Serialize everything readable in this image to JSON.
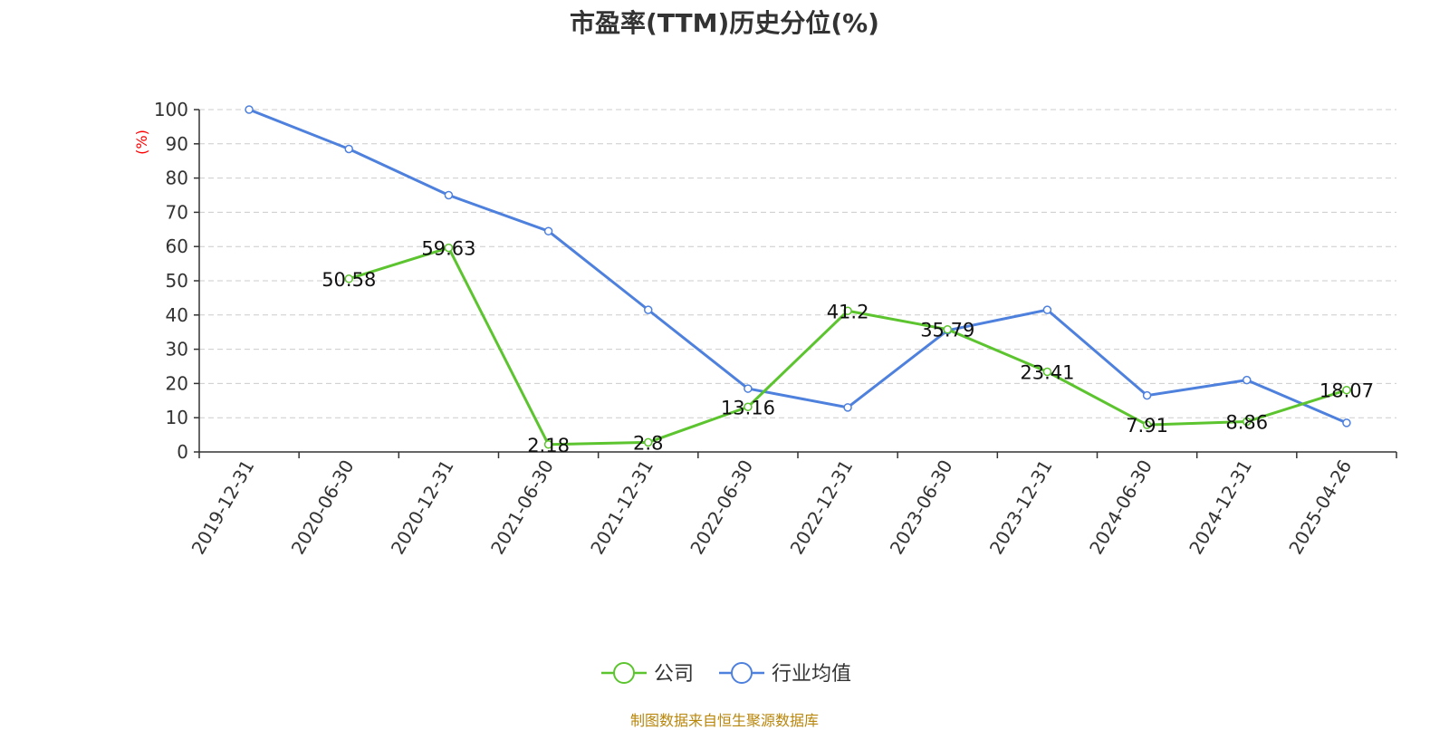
{
  "title": "市盈率(TTM)历史分位(%)",
  "source": "制图数据来自恒生聚源数据库",
  "colors": {
    "company": "#5cc42e",
    "industry": "#4e80dd",
    "unit": "#ff0000",
    "grid": "#cccccc",
    "axis": "#333333"
  },
  "chart_data": {
    "type": "line",
    "ylabel": "(%)",
    "ylim": [
      0,
      100
    ],
    "yticks": [
      0,
      10,
      20,
      30,
      40,
      50,
      60,
      70,
      80,
      90,
      100
    ],
    "grid": "horizontal-dashed",
    "legend_position": "bottom-center",
    "categories": [
      "2019-12-31",
      "2020-06-30",
      "2020-12-31",
      "2021-06-30",
      "2021-12-31",
      "2022-06-30",
      "2022-12-31",
      "2023-06-30",
      "2023-12-31",
      "2024-06-30",
      "2024-12-31",
      "2025-04-26"
    ],
    "series": [
      {
        "name": "公司",
        "values": [
          null,
          50.58,
          59.63,
          2.18,
          2.8,
          13.16,
          41.2,
          35.79,
          23.41,
          7.91,
          8.86,
          18.07
        ],
        "labels": [
          null,
          "50.58",
          "59.63",
          "2.18",
          "2.8",
          "13.16",
          "41.2",
          "35.79",
          "23.41",
          "7.91",
          "8.86",
          "18.07"
        ]
      },
      {
        "name": "行业均值",
        "values": [
          100,
          88.5,
          75,
          64.5,
          41.5,
          18.5,
          13,
          35.5,
          41.5,
          16.5,
          21,
          8.5
        ]
      }
    ]
  }
}
